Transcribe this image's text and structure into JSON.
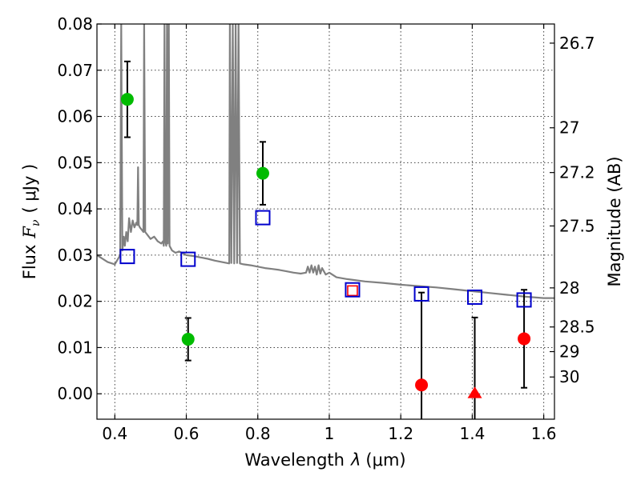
{
  "chart_data": {
    "type": "scatter",
    "xlabel": "Wavelength",
    "xlabel_symbol": "λ",
    "xlabel_unit": "(μm)",
    "ylabel": "Flux",
    "ylabel_symbol": "F",
    "ylabel_symbol_sub": "ν",
    "ylabel_unit": "( μJy )",
    "y2label": "Magnitude (AB)",
    "xlim": [
      0.35,
      1.63
    ],
    "ylim": [
      -0.0055,
      0.08
    ],
    "grid": true,
    "x_ticks": [
      {
        "value": 0.4,
        "label": "0.4"
      },
      {
        "value": 0.6,
        "label": "0.6"
      },
      {
        "value": 0.8,
        "label": "0.8"
      },
      {
        "value": 1.0,
        "label": "1"
      },
      {
        "value": 1.2,
        "label": "1.2"
      },
      {
        "value": 1.4,
        "label": "1.4"
      },
      {
        "value": 1.6,
        "label": "1.6"
      }
    ],
    "y_ticks": [
      {
        "value": 0.0,
        "label": "0.00"
      },
      {
        "value": 0.01,
        "label": "0.01"
      },
      {
        "value": 0.02,
        "label": "0.02"
      },
      {
        "value": 0.03,
        "label": "0.03"
      },
      {
        "value": 0.04,
        "label": "0.04"
      },
      {
        "value": 0.05,
        "label": "0.05"
      },
      {
        "value": 0.06,
        "label": "0.06"
      },
      {
        "value": 0.07,
        "label": "0.07"
      },
      {
        "value": 0.08,
        "label": "0.08"
      }
    ],
    "y2_ticks": [
      {
        "value": 26.7,
        "label": "26.7"
      },
      {
        "value": 27,
        "label": "27"
      },
      {
        "value": 27.2,
        "label": "27.2"
      },
      {
        "value": 27.5,
        "label": "27.5"
      },
      {
        "value": 28,
        "label": "28"
      },
      {
        "value": 28.5,
        "label": "28.5"
      },
      {
        "value": 29,
        "label": "29"
      },
      {
        "value": 30,
        "label": "30"
      }
    ],
    "colors": {
      "detection": "#00bb00",
      "nondetection": "#ff0000",
      "model": "#0000cc",
      "spectrum": "#808080",
      "errorbar": "#000000"
    },
    "series": [
      {
        "marker": "circle",
        "color": "#00bb00",
        "points": [
          {
            "x": 0.435,
            "y": 0.0637,
            "err": 0.0082
          },
          {
            "x": 0.605,
            "y": 0.0118,
            "err": 0.0046
          },
          {
            "x": 0.814,
            "y": 0.0477,
            "err": 0.0068
          }
        ]
      },
      {
        "marker": "circle",
        "color": "#ff0000",
        "points": [
          {
            "x": 1.258,
            "y": 0.0019,
            "err": 0.02
          },
          {
            "x": 1.545,
            "y": 0.0119,
            "err": 0.0106
          }
        ]
      },
      {
        "marker": "triangle",
        "color": "#ff0000",
        "points": [
          {
            "x": 1.407,
            "y": 0.0,
            "err": 0.0165
          }
        ]
      },
      {
        "marker": "small-square",
        "color": "#ff0000",
        "points": [
          {
            "x": 1.065,
            "y": 0.0223
          }
        ]
      },
      {
        "marker": "square",
        "color": "#0000cc",
        "points": [
          {
            "x": 0.435,
            "y": 0.0297
          },
          {
            "x": 0.605,
            "y": 0.0291
          },
          {
            "x": 0.814,
            "y": 0.0381
          },
          {
            "x": 1.065,
            "y": 0.0225
          },
          {
            "x": 1.258,
            "y": 0.0216
          },
          {
            "x": 1.407,
            "y": 0.0209
          },
          {
            "x": 1.545,
            "y": 0.0203
          }
        ]
      },
      {
        "marker": "line",
        "color": "#808080",
        "points": [
          [
            0.35,
            0.03
          ],
          [
            0.38,
            0.0285
          ],
          [
            0.4,
            0.028
          ],
          [
            0.415,
            0.03
          ],
          [
            0.418,
            0.08
          ],
          [
            0.421,
            0.031
          ],
          [
            0.425,
            0.034
          ],
          [
            0.428,
            0.032
          ],
          [
            0.432,
            0.035
          ],
          [
            0.436,
            0.033
          ],
          [
            0.44,
            0.038
          ],
          [
            0.445,
            0.035
          ],
          [
            0.45,
            0.0375
          ],
          [
            0.455,
            0.036
          ],
          [
            0.46,
            0.037
          ],
          [
            0.463,
            0.0365
          ],
          [
            0.465,
            0.049
          ],
          [
            0.467,
            0.0365
          ],
          [
            0.47,
            0.036
          ],
          [
            0.475,
            0.0355
          ],
          [
            0.48,
            0.035
          ],
          [
            0.482,
            0.08
          ],
          [
            0.485,
            0.035
          ],
          [
            0.49,
            0.0345
          ],
          [
            0.5,
            0.0335
          ],
          [
            0.51,
            0.034
          ],
          [
            0.52,
            0.033
          ],
          [
            0.53,
            0.0325
          ],
          [
            0.535,
            0.033
          ],
          [
            0.537,
            0.032
          ],
          [
            0.539,
            0.08
          ],
          [
            0.541,
            0.033
          ],
          [
            0.544,
            0.032
          ],
          [
            0.546,
            0.08
          ],
          [
            0.548,
            0.0325
          ],
          [
            0.551,
            0.08
          ],
          [
            0.553,
            0.032
          ],
          [
            0.56,
            0.031
          ],
          [
            0.57,
            0.0305
          ],
          [
            0.58,
            0.0308
          ],
          [
            0.6,
            0.03
          ],
          [
            0.62,
            0.0298
          ],
          [
            0.64,
            0.0295
          ],
          [
            0.66,
            0.0292
          ],
          [
            0.68,
            0.0288
          ],
          [
            0.7,
            0.0285
          ],
          [
            0.72,
            0.0282
          ],
          [
            0.722,
            0.08
          ],
          [
            0.726,
            0.0283
          ],
          [
            0.73,
            0.08
          ],
          [
            0.734,
            0.0282
          ],
          [
            0.738,
            0.08
          ],
          [
            0.742,
            0.0283
          ],
          [
            0.746,
            0.08
          ],
          [
            0.75,
            0.0282
          ],
          [
            0.76,
            0.028
          ],
          [
            0.78,
            0.0278
          ],
          [
            0.8,
            0.0275
          ],
          [
            0.82,
            0.0272
          ],
          [
            0.84,
            0.027
          ],
          [
            0.86,
            0.0268
          ],
          [
            0.88,
            0.0265
          ],
          [
            0.9,
            0.0262
          ],
          [
            0.92,
            0.026
          ],
          [
            0.935,
            0.0262
          ],
          [
            0.94,
            0.0275
          ],
          [
            0.945,
            0.0262
          ],
          [
            0.95,
            0.0278
          ],
          [
            0.955,
            0.0262
          ],
          [
            0.96,
            0.0275
          ],
          [
            0.965,
            0.0258
          ],
          [
            0.97,
            0.0278
          ],
          [
            0.975,
            0.026
          ],
          [
            0.98,
            0.0272
          ],
          [
            0.99,
            0.0258
          ],
          [
            1.0,
            0.0262
          ],
          [
            1.02,
            0.0252
          ],
          [
            1.05,
            0.0248
          ],
          [
            1.1,
            0.0243
          ],
          [
            1.15,
            0.024
          ],
          [
            1.2,
            0.0236
          ],
          [
            1.25,
            0.0233
          ],
          [
            1.3,
            0.023
          ],
          [
            1.35,
            0.0226
          ],
          [
            1.4,
            0.0222
          ],
          [
            1.45,
            0.0218
          ],
          [
            1.5,
            0.0214
          ],
          [
            1.55,
            0.021
          ],
          [
            1.6,
            0.0207
          ],
          [
            1.63,
            0.0207
          ]
        ]
      }
    ]
  }
}
